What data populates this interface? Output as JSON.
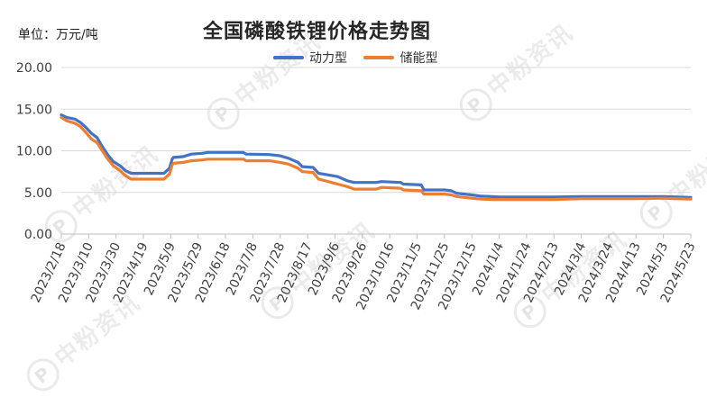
{
  "header": {
    "unit_label": "单位：万元/吨",
    "title": "全国磷酸铁锂价格走势图"
  },
  "watermark": {
    "text": "中粉资讯",
    "logo_letter": "P"
  },
  "legend": [
    {
      "name": "动力型",
      "color": "#4472C4"
    },
    {
      "name": "储能型",
      "color": "#ED7D31"
    }
  ],
  "chart_data": {
    "type": "line",
    "title": "全国磷酸铁锂价格走势图",
    "ylabel": "单位：万元/吨",
    "xlabel": "",
    "ylim": [
      0,
      20
    ],
    "yticks": [
      "0.00",
      "5.00",
      "10.00",
      "15.00",
      "20.00"
    ],
    "xlim": [
      "2023/2/18",
      "2024/5/23"
    ],
    "xticks": [
      "2023/2/18",
      "2023/3/10",
      "2023/3/30",
      "2023/4/19",
      "2023/5/9",
      "2023/5/29",
      "2023/6/18",
      "2023/7/8",
      "2023/7/28",
      "2023/8/17",
      "2023/9/6",
      "2023/9/26",
      "2023/10/16",
      "2023/11/5",
      "2023/11/25",
      "2023/12/15",
      "2024/1/4",
      "2024/1/24",
      "2024/2/13",
      "2024/3/4",
      "2024/3/24",
      "2024/4/13",
      "2024/5/3",
      "2024/5/23"
    ],
    "grid": true,
    "legend_position": "top",
    "series": [
      {
        "name": "动力型",
        "color": "#4472C4",
        "points": [
          [
            "2023/2/18",
            14.3
          ],
          [
            "2023/2/22",
            14.0
          ],
          [
            "2023/2/28",
            13.8
          ],
          [
            "2023/3/4",
            13.4
          ],
          [
            "2023/3/8",
            12.8
          ],
          [
            "2023/3/12",
            12.1
          ],
          [
            "2023/3/16",
            11.6
          ],
          [
            "2023/3/20",
            10.5
          ],
          [
            "2023/3/24",
            9.5
          ],
          [
            "2023/3/28",
            8.7
          ],
          [
            "2023/4/2",
            8.2
          ],
          [
            "2023/4/6",
            7.6
          ],
          [
            "2023/4/10",
            7.3
          ],
          [
            "2023/4/19",
            7.3
          ],
          [
            "2023/4/28",
            7.3
          ],
          [
            "2023/5/4",
            7.3
          ],
          [
            "2023/5/8",
            7.9
          ],
          [
            "2023/5/10",
            9.0
          ],
          [
            "2023/5/11",
            9.2
          ],
          [
            "2023/5/18",
            9.3
          ],
          [
            "2023/5/24",
            9.6
          ],
          [
            "2023/6/1",
            9.7
          ],
          [
            "2023/6/5",
            9.8
          ],
          [
            "2023/6/18",
            9.8
          ],
          [
            "2023/7/1",
            9.8
          ],
          [
            "2023/7/3",
            9.6
          ],
          [
            "2023/7/20",
            9.55
          ],
          [
            "2023/7/28",
            9.4
          ],
          [
            "2023/8/3",
            9.1
          ],
          [
            "2023/8/10",
            8.6
          ],
          [
            "2023/8/13",
            8.1
          ],
          [
            "2023/8/21",
            8.0
          ],
          [
            "2023/8/25",
            7.3
          ],
          [
            "2023/9/1",
            7.1
          ],
          [
            "2023/9/8",
            6.9
          ],
          [
            "2023/9/15",
            6.4
          ],
          [
            "2023/9/20",
            6.2
          ],
          [
            "2023/10/6",
            6.2
          ],
          [
            "2023/10/10",
            6.3
          ],
          [
            "2023/10/24",
            6.2
          ],
          [
            "2023/10/26",
            6.0
          ],
          [
            "2023/11/8",
            5.9
          ],
          [
            "2023/11/10",
            5.3
          ],
          [
            "2023/11/25",
            5.3
          ],
          [
            "2023/11/30",
            5.2
          ],
          [
            "2023/12/4",
            4.9
          ],
          [
            "2023/12/15",
            4.7
          ],
          [
            "2023/12/22",
            4.55
          ],
          [
            "2023/12/30",
            4.5
          ],
          [
            "2024/1/4",
            4.45
          ],
          [
            "2024/2/13",
            4.45
          ],
          [
            "2024/3/4",
            4.5
          ],
          [
            "2024/4/13",
            4.5
          ],
          [
            "2024/5/3",
            4.5
          ],
          [
            "2024/5/23",
            4.4
          ]
        ]
      },
      {
        "name": "储能型",
        "color": "#ED7D31",
        "points": [
          [
            "2023/2/18",
            14.0
          ],
          [
            "2023/2/22",
            13.6
          ],
          [
            "2023/2/28",
            13.3
          ],
          [
            "2023/3/4",
            12.9
          ],
          [
            "2023/3/8",
            12.2
          ],
          [
            "2023/3/12",
            11.4
          ],
          [
            "2023/3/16",
            11.0
          ],
          [
            "2023/3/20",
            10.0
          ],
          [
            "2023/3/24",
            9.0
          ],
          [
            "2023/3/28",
            8.2
          ],
          [
            "2023/4/2",
            7.6
          ],
          [
            "2023/4/6",
            7.0
          ],
          [
            "2023/4/10",
            6.6
          ],
          [
            "2023/4/19",
            6.6
          ],
          [
            "2023/4/28",
            6.6
          ],
          [
            "2023/5/4",
            6.6
          ],
          [
            "2023/5/8",
            7.2
          ],
          [
            "2023/5/10",
            8.3
          ],
          [
            "2023/5/11",
            8.5
          ],
          [
            "2023/5/18",
            8.6
          ],
          [
            "2023/5/24",
            8.8
          ],
          [
            "2023/6/1",
            8.9
          ],
          [
            "2023/6/5",
            9.0
          ],
          [
            "2023/6/18",
            9.0
          ],
          [
            "2023/7/1",
            9.0
          ],
          [
            "2023/7/3",
            8.8
          ],
          [
            "2023/7/20",
            8.8
          ],
          [
            "2023/7/28",
            8.6
          ],
          [
            "2023/8/3",
            8.4
          ],
          [
            "2023/8/10",
            7.9
          ],
          [
            "2023/8/13",
            7.5
          ],
          [
            "2023/8/21",
            7.4
          ],
          [
            "2023/8/25",
            6.6
          ],
          [
            "2023/9/1",
            6.3
          ],
          [
            "2023/9/8",
            6.0
          ],
          [
            "2023/9/15",
            5.7
          ],
          [
            "2023/9/20",
            5.4
          ],
          [
            "2023/10/6",
            5.4
          ],
          [
            "2023/10/10",
            5.6
          ],
          [
            "2023/10/24",
            5.5
          ],
          [
            "2023/10/26",
            5.3
          ],
          [
            "2023/11/8",
            5.2
          ],
          [
            "2023/11/10",
            4.8
          ],
          [
            "2023/11/25",
            4.8
          ],
          [
            "2023/11/30",
            4.7
          ],
          [
            "2023/12/4",
            4.5
          ],
          [
            "2023/12/15",
            4.3
          ],
          [
            "2023/12/22",
            4.2
          ],
          [
            "2023/12/30",
            4.15
          ],
          [
            "2024/1/4",
            4.15
          ],
          [
            "2024/2/13",
            4.15
          ],
          [
            "2024/3/4",
            4.25
          ],
          [
            "2024/4/13",
            4.25
          ],
          [
            "2024/5/3",
            4.3
          ],
          [
            "2024/5/23",
            4.2
          ]
        ]
      }
    ]
  }
}
